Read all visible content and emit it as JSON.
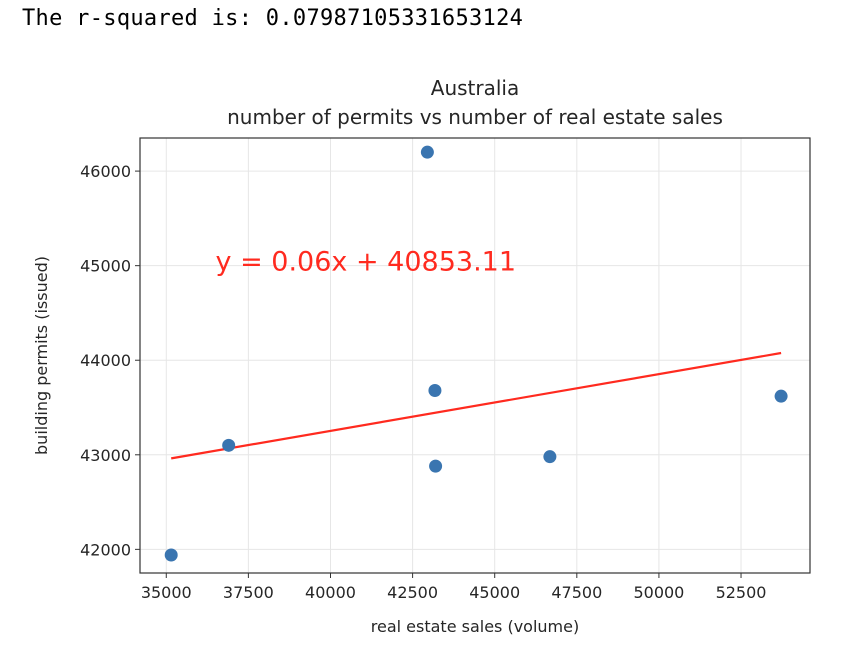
{
  "output": {
    "text": "The r-squared is: 0.07987105331653124"
  },
  "chart_data": {
    "type": "scatter",
    "title_lines": [
      "Australia",
      "number of permits vs number of real estate sales"
    ],
    "xlabel": "real estate sales (volume)",
    "ylabel": "building permits (issued)",
    "xlim": [
      34200,
      54600
    ],
    "ylim": [
      41750,
      46350
    ],
    "xticks": [
      35000,
      37500,
      40000,
      42500,
      45000,
      47500,
      50000,
      52500
    ],
    "yticks": [
      42000,
      43000,
      44000,
      45000,
      46000
    ],
    "grid": true,
    "points": [
      {
        "x": 35150,
        "y": 41940
      },
      {
        "x": 36900,
        "y": 43100
      },
      {
        "x": 42950,
        "y": 46200
      },
      {
        "x": 43180,
        "y": 43680
      },
      {
        "x": 43200,
        "y": 42880
      },
      {
        "x": 46680,
        "y": 42980
      },
      {
        "x": 53720,
        "y": 43620
      }
    ],
    "point_color": "#3a75b0",
    "regression": {
      "slope": 0.06,
      "intercept": 40853.11,
      "x_range": [
        35150,
        53720
      ],
      "equation_text": "y = 0.06x + 40853.11",
      "equation_anchor": {
        "x": 36500,
        "y": 44950
      },
      "color": "#ff2a1f"
    }
  }
}
